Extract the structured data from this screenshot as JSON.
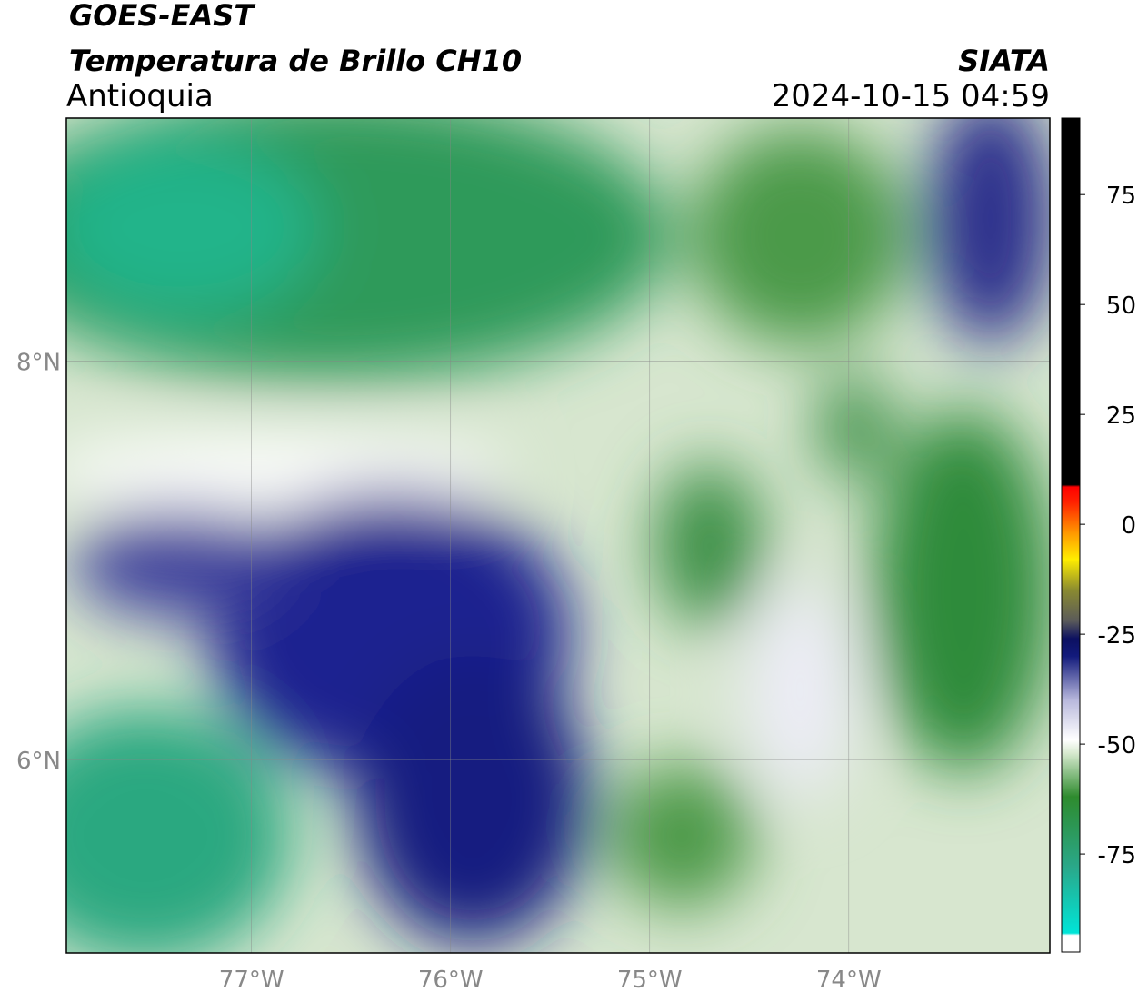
{
  "header": {
    "title": "GOES-EAST",
    "subtitle": "Temperatura de Brillo CH10",
    "region": "Antioquia",
    "source": "SIATA",
    "datetime": "2024-10-15 04:59"
  },
  "map": {
    "xlim": [
      -77.93,
      -72.99
    ],
    "ylim": [
      5.03,
      9.22
    ],
    "lon_ticks": [
      {
        "value": -77,
        "label": "77°W"
      },
      {
        "value": -76,
        "label": "76°W"
      },
      {
        "value": -75,
        "label": "75°W"
      },
      {
        "value": -74,
        "label": "74°W"
      }
    ],
    "lat_ticks": [
      {
        "value": 8,
        "label": "8°N"
      },
      {
        "value": 6,
        "label": "6°N"
      }
    ]
  },
  "colorbar": {
    "lim": [
      -97.3,
      92.4
    ],
    "ticks": [
      75,
      50,
      25,
      0,
      -25,
      -50,
      -75
    ],
    "colormap": [
      {
        "value": -97.3,
        "color": "#ffffff"
      },
      {
        "value": -93.5,
        "color": "#ffffff"
      },
      {
        "value": -93,
        "color": "#00e5d8"
      },
      {
        "value": -78,
        "color": "#2aa88a"
      },
      {
        "value": -62,
        "color": "#2e8b2e"
      },
      {
        "value": -52,
        "color": "#d8ead0"
      },
      {
        "value": -49,
        "color": "#ffffff"
      },
      {
        "value": -40,
        "color": "#b8b8dc"
      },
      {
        "value": -30,
        "color": "#121a7c"
      },
      {
        "value": -26,
        "color": "#0c1060"
      },
      {
        "value": -22,
        "color": "#5a5a5a"
      },
      {
        "value": -15,
        "color": "#8a8a30"
      },
      {
        "value": -8,
        "color": "#ffee00"
      },
      {
        "value": -2,
        "color": "#ff9900"
      },
      {
        "value": 5,
        "color": "#ff2200"
      },
      {
        "value": 8.5,
        "color": "#ff0000"
      },
      {
        "value": 9,
        "color": "#000000"
      },
      {
        "value": 92.4,
        "color": "#000000"
      }
    ]
  }
}
